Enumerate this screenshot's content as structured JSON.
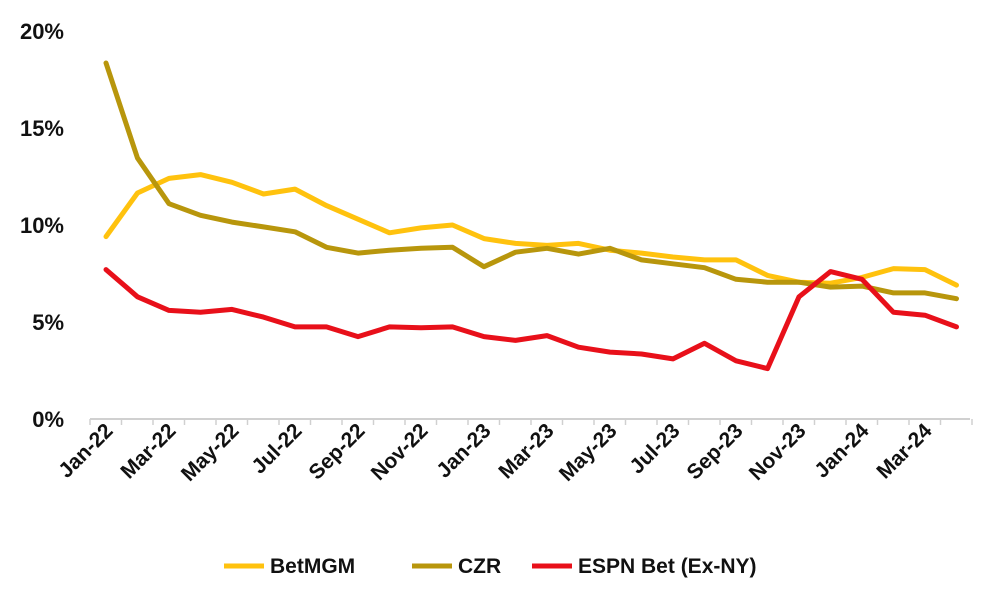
{
  "chart_data": {
    "type": "line",
    "title": "",
    "xlabel": "",
    "ylabel": "",
    "ylim": [
      0,
      20
    ],
    "yticks": [
      "0%",
      "5%",
      "10%",
      "15%",
      "20%"
    ],
    "ytick_values": [
      0,
      5,
      10,
      15,
      20
    ],
    "grid": false,
    "legend_position": "bottom",
    "x": [
      "Jan-22",
      "Feb-22",
      "Mar-22",
      "Apr-22",
      "May-22",
      "Jun-22",
      "Jul-22",
      "Aug-22",
      "Sep-22",
      "Oct-22",
      "Nov-22",
      "Dec-22",
      "Jan-23",
      "Feb-23",
      "Mar-23",
      "Apr-23",
      "May-23",
      "Jun-23",
      "Jul-23",
      "Aug-23",
      "Sep-23",
      "Oct-23",
      "Nov-23",
      "Dec-23",
      "Jan-24",
      "Feb-24",
      "Mar-24",
      "Apr-24"
    ],
    "xtick_labels": [
      "Jan-22",
      "Mar-22",
      "May-22",
      "Jul-22",
      "Sep-22",
      "Nov-22",
      "Jan-23",
      "Mar-23",
      "May-23",
      "Jul-23",
      "Sep-23",
      "Nov-23",
      "Jan-24",
      "Mar-24"
    ],
    "series": [
      {
        "name": "BetMGM",
        "color": "#FFC20E",
        "values": [
          9.4,
          11.65,
          12.4,
          12.6,
          12.2,
          11.6,
          11.85,
          11.0,
          10.3,
          9.6,
          9.85,
          10.0,
          9.3,
          9.05,
          8.95,
          9.05,
          8.7,
          8.55,
          8.35,
          8.2,
          8.2,
          7.4,
          7.05,
          7.0,
          7.3,
          7.75,
          7.7,
          6.9
        ]
      },
      {
        "name": "CZR",
        "color": "#B8960C",
        "values": [
          18.35,
          13.45,
          11.1,
          10.5,
          10.15,
          9.9,
          9.65,
          8.85,
          8.55,
          8.7,
          8.8,
          8.85,
          7.85,
          8.6,
          8.8,
          8.5,
          8.8,
          8.2,
          8.0,
          7.8,
          7.2,
          7.05,
          7.05,
          6.8,
          6.85,
          6.5,
          6.5,
          6.2
        ]
      },
      {
        "name": "ESPN Bet (Ex-NY)",
        "color": "#E8101A",
        "values": [
          7.7,
          6.3,
          5.6,
          5.5,
          5.65,
          5.25,
          4.75,
          4.75,
          4.25,
          4.75,
          4.7,
          4.75,
          4.25,
          4.05,
          4.3,
          3.7,
          3.45,
          3.35,
          3.1,
          3.9,
          3.0,
          2.6,
          6.3,
          7.6,
          7.2,
          5.5,
          5.35,
          4.75
        ]
      }
    ]
  }
}
